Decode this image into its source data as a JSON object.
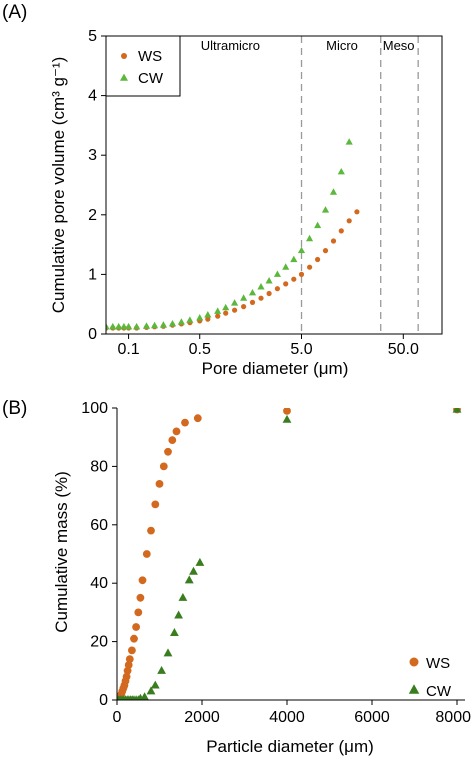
{
  "chart_data": [
    {
      "panel": "(A)",
      "type": "scatter",
      "xlabel": "Pore diameter (μm)",
      "ylabel": "Cumulative pore volume (cm³ g⁻¹)",
      "x_scale": "log",
      "xlim": [
        0.06,
        120
      ],
      "ylim": [
        0,
        5
      ],
      "x_ticks": [
        {
          "value": 0.1,
          "label": "0.1"
        },
        {
          "value": 0.5,
          "label": "0.5"
        },
        {
          "value": 5,
          "label": "5.0"
        },
        {
          "value": 50,
          "label": "50.0"
        }
      ],
      "y_ticks": [
        0,
        1,
        2,
        3,
        4,
        5
      ],
      "legend_position": "top-left",
      "region_boundaries": [
        5,
        30,
        70
      ],
      "regions": [
        {
          "label": "Ultramicro",
          "x": 1.0
        },
        {
          "label": "Micro",
          "x": 12.5
        },
        {
          "label": "Meso",
          "x": 45
        }
      ],
      "series": [
        {
          "name": "WS",
          "color": "#d2691e",
          "marker": "circle",
          "points": [
            [
              0.06,
              0.1
            ],
            [
              0.07,
              0.1
            ],
            [
              0.08,
              0.1
            ],
            [
              0.09,
              0.1
            ],
            [
              0.1,
              0.1
            ],
            [
              0.12,
              0.1
            ],
            [
              0.15,
              0.11
            ],
            [
              0.18,
              0.12
            ],
            [
              0.22,
              0.13
            ],
            [
              0.27,
              0.15
            ],
            [
              0.33,
              0.17
            ],
            [
              0.4,
              0.19
            ],
            [
              0.5,
              0.22
            ],
            [
              0.6,
              0.25
            ],
            [
              0.75,
              0.3
            ],
            [
              0.9,
              0.35
            ],
            [
              1.1,
              0.4
            ],
            [
              1.35,
              0.46
            ],
            [
              1.65,
              0.53
            ],
            [
              2.0,
              0.6
            ],
            [
              2.4,
              0.68
            ],
            [
              2.9,
              0.76
            ],
            [
              3.5,
              0.84
            ],
            [
              4.2,
              0.92
            ],
            [
              5.0,
              1.0
            ],
            [
              6.0,
              1.12
            ],
            [
              7.2,
              1.25
            ],
            [
              8.6,
              1.4
            ],
            [
              10.3,
              1.56
            ],
            [
              12.3,
              1.73
            ],
            [
              14.7,
              1.9
            ],
            [
              17.5,
              2.05
            ]
          ]
        },
        {
          "name": "CW",
          "color": "#5cb83c",
          "marker": "triangle",
          "points": [
            [
              0.06,
              0.12
            ],
            [
              0.07,
              0.12
            ],
            [
              0.08,
              0.12
            ],
            [
              0.09,
              0.12
            ],
            [
              0.1,
              0.12
            ],
            [
              0.12,
              0.12
            ],
            [
              0.15,
              0.13
            ],
            [
              0.18,
              0.14
            ],
            [
              0.22,
              0.15
            ],
            [
              0.27,
              0.17
            ],
            [
              0.33,
              0.2
            ],
            [
              0.4,
              0.23
            ],
            [
              0.5,
              0.27
            ],
            [
              0.6,
              0.32
            ],
            [
              0.75,
              0.38
            ],
            [
              0.9,
              0.44
            ],
            [
              1.1,
              0.52
            ],
            [
              1.35,
              0.6
            ],
            [
              1.65,
              0.69
            ],
            [
              2.0,
              0.79
            ],
            [
              2.4,
              0.89
            ],
            [
              2.9,
              1.0
            ],
            [
              3.5,
              1.12
            ],
            [
              4.2,
              1.25
            ],
            [
              5.0,
              1.4
            ],
            [
              6.0,
              1.6
            ],
            [
              7.2,
              1.82
            ],
            [
              8.6,
              2.08
            ],
            [
              10.3,
              2.38
            ],
            [
              12.3,
              2.72
            ],
            [
              14.7,
              3.22
            ]
          ]
        }
      ]
    },
    {
      "panel": "(B)",
      "type": "scatter",
      "xlabel": "Particle diameter (μm)",
      "ylabel": "Cumulative mass (%)",
      "xlim": [
        0,
        8000
      ],
      "ylim": [
        0,
        100
      ],
      "x_ticks": [
        {
          "value": 0,
          "label": "0"
        },
        {
          "value": 2000,
          "label": "2000"
        },
        {
          "value": 4000,
          "label": "4000"
        },
        {
          "value": 6000,
          "label": "6000"
        },
        {
          "value": 8000,
          "label": "8000"
        }
      ],
      "y_ticks": [
        0,
        20,
        40,
        60,
        80,
        100
      ],
      "legend_position": "bottom-right",
      "series": [
        {
          "name": "WS",
          "color": "#d2691e",
          "marker": "circle",
          "points": [
            [
              0,
              0
            ],
            [
              25,
              0
            ],
            [
              50,
              0.5
            ],
            [
              75,
              1
            ],
            [
              100,
              2
            ],
            [
              125,
              3
            ],
            [
              150,
              4
            ],
            [
              175,
              5
            ],
            [
              200,
              6.5
            ],
            [
              225,
              8
            ],
            [
              250,
              10
            ],
            [
              275,
              12
            ],
            [
              300,
              14
            ],
            [
              350,
              17
            ],
            [
              400,
              21
            ],
            [
              450,
              25
            ],
            [
              500,
              30
            ],
            [
              550,
              35
            ],
            [
              600,
              41
            ],
            [
              700,
              50
            ],
            [
              800,
              58
            ],
            [
              900,
              67
            ],
            [
              1000,
              74
            ],
            [
              1100,
              80
            ],
            [
              1200,
              85
            ],
            [
              1300,
              89
            ],
            [
              1400,
              92
            ],
            [
              1600,
              95
            ],
            [
              1900,
              96.5
            ],
            [
              4000,
              99
            ],
            [
              8000,
              99.5
            ]
          ]
        },
        {
          "name": "CW",
          "color": "#3a7d1e",
          "marker": "triangle",
          "points": [
            [
              0,
              0
            ],
            [
              40,
              0
            ],
            [
              80,
              0
            ],
            [
              120,
              0
            ],
            [
              160,
              0
            ],
            [
              200,
              0
            ],
            [
              240,
              0
            ],
            [
              280,
              0
            ],
            [
              320,
              0
            ],
            [
              360,
              0
            ],
            [
              400,
              0
            ],
            [
              450,
              0
            ],
            [
              500,
              0
            ],
            [
              550,
              0.5
            ],
            [
              650,
              1
            ],
            [
              800,
              3
            ],
            [
              900,
              5
            ],
            [
              1050,
              10
            ],
            [
              1200,
              16
            ],
            [
              1350,
              23
            ],
            [
              1450,
              29
            ],
            [
              1550,
              35
            ],
            [
              1700,
              41
            ],
            [
              1800,
              44
            ],
            [
              1950,
              47
            ],
            [
              4000,
              96
            ],
            [
              8000,
              99.5
            ]
          ]
        }
      ]
    }
  ]
}
